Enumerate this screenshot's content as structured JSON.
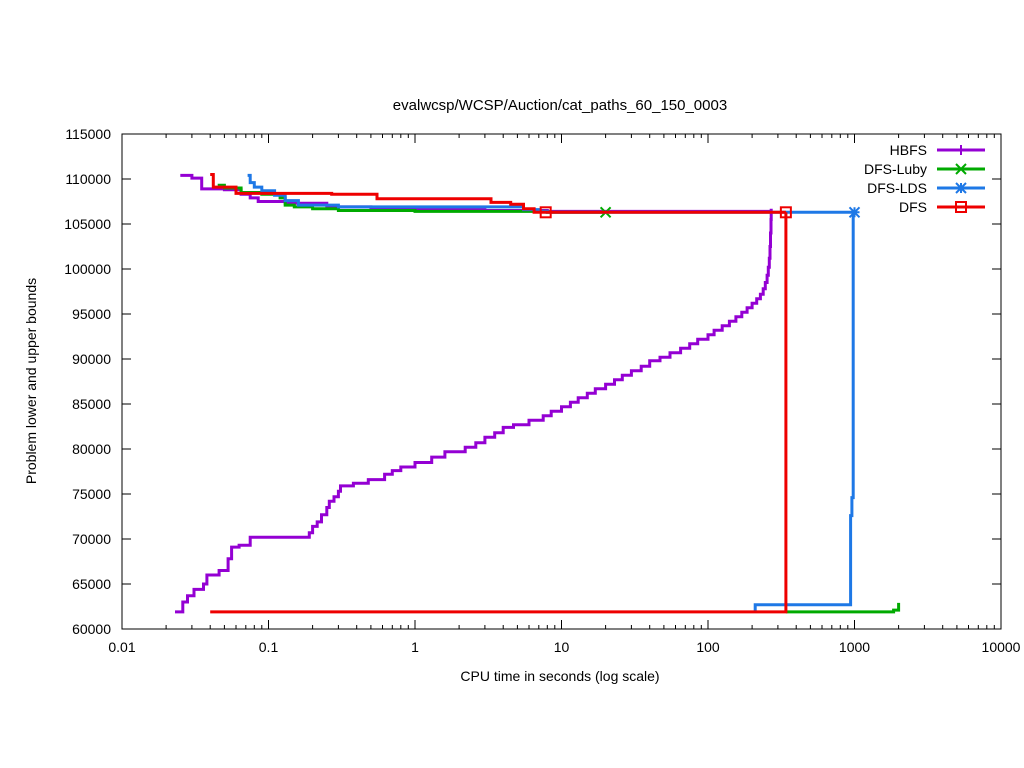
{
  "chart_data": {
    "type": "line",
    "title": "evalwcsp/WCSP/Auction/cat_paths_60_150_0003",
    "xlabel": "CPU time in seconds (log scale)",
    "ylabel": "Problem lower and upper bounds",
    "xscale": "log",
    "xlim": [
      0.01,
      10000
    ],
    "ylim": [
      60000,
      115000
    ],
    "x_ticks": [
      0.01,
      0.1,
      1,
      10,
      100,
      1000,
      10000
    ],
    "x_tick_labels": [
      "0.01",
      "0.1",
      "1",
      "10",
      "100",
      "1000",
      "10000"
    ],
    "y_ticks": [
      60000,
      65000,
      70000,
      75000,
      80000,
      85000,
      90000,
      95000,
      100000,
      105000,
      110000,
      115000
    ],
    "y_tick_labels": [
      "60000",
      "65000",
      "70000",
      "75000",
      "80000",
      "85000",
      "90000",
      "95000",
      "100000",
      "105000",
      "110000",
      "115000"
    ],
    "grid": false,
    "legend_position": "top-right",
    "series": [
      {
        "name": "HBFS",
        "color": "#9400d3",
        "marker": "plus",
        "marker_points": [],
        "segments": [
          [
            [
              0.025,
              110400
            ],
            [
              0.03,
              110400
            ],
            [
              0.03,
              110100
            ],
            [
              0.035,
              110100
            ],
            [
              0.035,
              108900
            ],
            [
              0.05,
              108900
            ],
            [
              0.05,
              108800
            ],
            [
              0.065,
              108800
            ],
            [
              0.065,
              108300
            ],
            [
              0.075,
              108300
            ],
            [
              0.075,
              107900
            ],
            [
              0.085,
              107900
            ],
            [
              0.085,
              107500
            ],
            [
              0.13,
              107500
            ],
            [
              0.13,
              107300
            ],
            [
              0.25,
              107300
            ],
            [
              0.25,
              106900
            ],
            [
              0.5,
              106900
            ],
            [
              0.5,
              106700
            ],
            [
              1,
              106700
            ],
            [
              1,
              106600
            ],
            [
              3,
              106600
            ],
            [
              3,
              106500
            ],
            [
              8,
              106500
            ],
            [
              8,
              106400
            ],
            [
              270,
              106400
            ]
          ],
          [
            [
              0.023,
              61900
            ],
            [
              0.026,
              61900
            ],
            [
              0.026,
              63000
            ],
            [
              0.028,
              63000
            ],
            [
              0.028,
              63700
            ],
            [
              0.031,
              63700
            ],
            [
              0.031,
              64400
            ],
            [
              0.036,
              64400
            ],
            [
              0.036,
              65000
            ],
            [
              0.038,
              65000
            ],
            [
              0.038,
              66000
            ],
            [
              0.046,
              66000
            ],
            [
              0.046,
              66500
            ],
            [
              0.053,
              66500
            ],
            [
              0.053,
              67800
            ],
            [
              0.056,
              67800
            ],
            [
              0.056,
              69100
            ],
            [
              0.063,
              69100
            ],
            [
              0.063,
              69300
            ],
            [
              0.075,
              69300
            ],
            [
              0.075,
              70200
            ],
            [
              0.19,
              70200
            ],
            [
              0.19,
              70700
            ],
            [
              0.2,
              70700
            ],
            [
              0.2,
              71400
            ],
            [
              0.215,
              71400
            ],
            [
              0.215,
              71900
            ],
            [
              0.23,
              71900
            ],
            [
              0.23,
              72700
            ],
            [
              0.25,
              72700
            ],
            [
              0.25,
              73500
            ],
            [
              0.26,
              73500
            ],
            [
              0.26,
              74200
            ],
            [
              0.28,
              74200
            ],
            [
              0.28,
              74700
            ],
            [
              0.3,
              74700
            ],
            [
              0.3,
              75300
            ],
            [
              0.31,
              75300
            ],
            [
              0.31,
              75900
            ],
            [
              0.38,
              75900
            ],
            [
              0.38,
              76200
            ],
            [
              0.48,
              76200
            ],
            [
              0.48,
              76600
            ],
            [
              0.62,
              76600
            ],
            [
              0.62,
              77200
            ],
            [
              0.7,
              77200
            ],
            [
              0.7,
              77600
            ],
            [
              0.8,
              77600
            ],
            [
              0.8,
              78000
            ],
            [
              1.0,
              78000
            ],
            [
              1.0,
              78500
            ],
            [
              1.3,
              78500
            ],
            [
              1.3,
              79100
            ],
            [
              1.6,
              79100
            ],
            [
              1.6,
              79700
            ],
            [
              2.2,
              79700
            ],
            [
              2.2,
              80200
            ],
            [
              2.6,
              80200
            ],
            [
              2.6,
              80700
            ],
            [
              3.0,
              80700
            ],
            [
              3.0,
              81300
            ],
            [
              3.5,
              81300
            ],
            [
              3.5,
              81800
            ],
            [
              4.0,
              81800
            ],
            [
              4.0,
              82400
            ],
            [
              4.7,
              82400
            ],
            [
              4.7,
              82700
            ],
            [
              6.0,
              82700
            ],
            [
              6.0,
              83200
            ],
            [
              7.5,
              83200
            ],
            [
              7.5,
              83700
            ],
            [
              8.5,
              83700
            ],
            [
              8.5,
              84200
            ],
            [
              10,
              84200
            ],
            [
              10,
              84700
            ],
            [
              11.5,
              84700
            ],
            [
              11.5,
              85200
            ],
            [
              13,
              85200
            ],
            [
              13,
              85700
            ],
            [
              15,
              85700
            ],
            [
              15,
              86200
            ],
            [
              17,
              86200
            ],
            [
              17,
              86700
            ],
            [
              20,
              86700
            ],
            [
              20,
              87200
            ],
            [
              23,
              87200
            ],
            [
              23,
              87700
            ],
            [
              26,
              87700
            ],
            [
              26,
              88200
            ],
            [
              30,
              88200
            ],
            [
              30,
              88700
            ],
            [
              35,
              88700
            ],
            [
              35,
              89200
            ],
            [
              40,
              89200
            ],
            [
              40,
              89800
            ],
            [
              47,
              89800
            ],
            [
              47,
              90200
            ],
            [
              55,
              90200
            ],
            [
              55,
              90700
            ],
            [
              65,
              90700
            ],
            [
              65,
              91200
            ],
            [
              75,
              91200
            ],
            [
              75,
              91700
            ],
            [
              85,
              91700
            ],
            [
              85,
              92200
            ],
            [
              100,
              92200
            ],
            [
              100,
              92700
            ],
            [
              110,
              92700
            ],
            [
              110,
              93200
            ],
            [
              125,
              93200
            ],
            [
              125,
              93700
            ],
            [
              140,
              93700
            ],
            [
              140,
              94200
            ],
            [
              155,
              94200
            ],
            [
              155,
              94700
            ],
            [
              170,
              94700
            ],
            [
              170,
              95200
            ],
            [
              185,
              95200
            ],
            [
              185,
              95700
            ],
            [
              200,
              95700
            ],
            [
              200,
              96200
            ],
            [
              215,
              96200
            ],
            [
              215,
              96700
            ],
            [
              228,
              96700
            ],
            [
              228,
              97200
            ],
            [
              238,
              97200
            ],
            [
              238,
              97800
            ],
            [
              246,
              97800
            ],
            [
              246,
              98500
            ],
            [
              253,
              98500
            ],
            [
              253,
              99300
            ],
            [
              258,
              99300
            ],
            [
              258,
              100200
            ],
            [
              262,
              100200
            ],
            [
              262,
              101200
            ],
            [
              265,
              101200
            ],
            [
              265,
              102500
            ],
            [
              267,
              102500
            ],
            [
              267,
              104000
            ],
            [
              269,
              104000
            ],
            [
              269,
              105500
            ],
            [
              270,
              105500
            ],
            [
              270,
              106700
            ]
          ]
        ]
      },
      {
        "name": "DFS-Luby",
        "color": "#00aa00",
        "marker": "x",
        "marker_points": [
          [
            20,
            106300
          ]
        ],
        "segments": [
          [
            [
              0.045,
              109300
            ],
            [
              0.05,
              109300
            ],
            [
              0.05,
              109000
            ],
            [
              0.065,
              109000
            ],
            [
              0.065,
              108500
            ],
            [
              0.09,
              108500
            ],
            [
              0.09,
              108300
            ],
            [
              0.12,
              108300
            ],
            [
              0.12,
              107900
            ],
            [
              0.13,
              107900
            ],
            [
              0.13,
              107100
            ],
            [
              0.15,
              107100
            ],
            [
              0.15,
              106900
            ],
            [
              0.2,
              106900
            ],
            [
              0.2,
              106700
            ],
            [
              0.3,
              106700
            ],
            [
              0.3,
              106500
            ],
            [
              1,
              106500
            ],
            [
              1,
              106400
            ],
            [
              8,
              106400
            ],
            [
              8,
              106300
            ],
            [
              20,
              106300
            ]
          ],
          [
            [
              340,
              61900
            ],
            [
              1850,
              61900
            ],
            [
              1850,
              62100
            ],
            [
              2000,
              62100
            ],
            [
              2000,
              62900
            ]
          ]
        ]
      },
      {
        "name": "DFS-LDS",
        "color": "#1e78e6",
        "marker": "star",
        "marker_points": [
          [
            1000,
            106300
          ]
        ],
        "segments": [
          [
            [
              0.072,
              110400
            ],
            [
              0.075,
              110400
            ],
            [
              0.075,
              109600
            ],
            [
              0.08,
              109600
            ],
            [
              0.08,
              109100
            ],
            [
              0.09,
              109100
            ],
            [
              0.09,
              108700
            ],
            [
              0.11,
              108700
            ],
            [
              0.11,
              108200
            ],
            [
              0.13,
              108200
            ],
            [
              0.13,
              107600
            ],
            [
              0.16,
              107600
            ],
            [
              0.16,
              107100
            ],
            [
              0.3,
              107100
            ],
            [
              0.3,
              106900
            ],
            [
              5.5,
              106900
            ],
            [
              5.5,
              106600
            ],
            [
              7,
              106600
            ],
            [
              7,
              106400
            ],
            [
              8,
              106400
            ],
            [
              8,
              106300
            ],
            [
              1000,
              106300
            ]
          ],
          [
            [
              210,
              61900
            ],
            [
              210,
              62700
            ],
            [
              940,
              62700
            ],
            [
              940,
              72600
            ],
            [
              960,
              72600
            ],
            [
              960,
              74600
            ],
            [
              980,
              74600
            ],
            [
              980,
              106300
            ]
          ]
        ]
      },
      {
        "name": "DFS",
        "color": "#ee0000",
        "marker": "square",
        "marker_points": [
          [
            7.8,
            106300
          ],
          [
            340,
            106300
          ]
        ],
        "segments": [
          [
            [
              0.04,
              110500
            ],
            [
              0.042,
              110500
            ],
            [
              0.042,
              109100
            ],
            [
              0.06,
              109100
            ],
            [
              0.06,
              108400
            ],
            [
              0.27,
              108400
            ],
            [
              0.27,
              108300
            ],
            [
              0.55,
              108300
            ],
            [
              0.55,
              107800
            ],
            [
              3.3,
              107800
            ],
            [
              3.3,
              107400
            ],
            [
              4.5,
              107400
            ],
            [
              4.5,
              107200
            ],
            [
              5.5,
              107200
            ],
            [
              5.5,
              106700
            ],
            [
              6.5,
              106700
            ],
            [
              6.5,
              106300
            ],
            [
              340,
              106300
            ]
          ],
          [
            [
              0.04,
              61900
            ],
            [
              340,
              61900
            ],
            [
              340,
              106300
            ]
          ]
        ]
      }
    ]
  }
}
